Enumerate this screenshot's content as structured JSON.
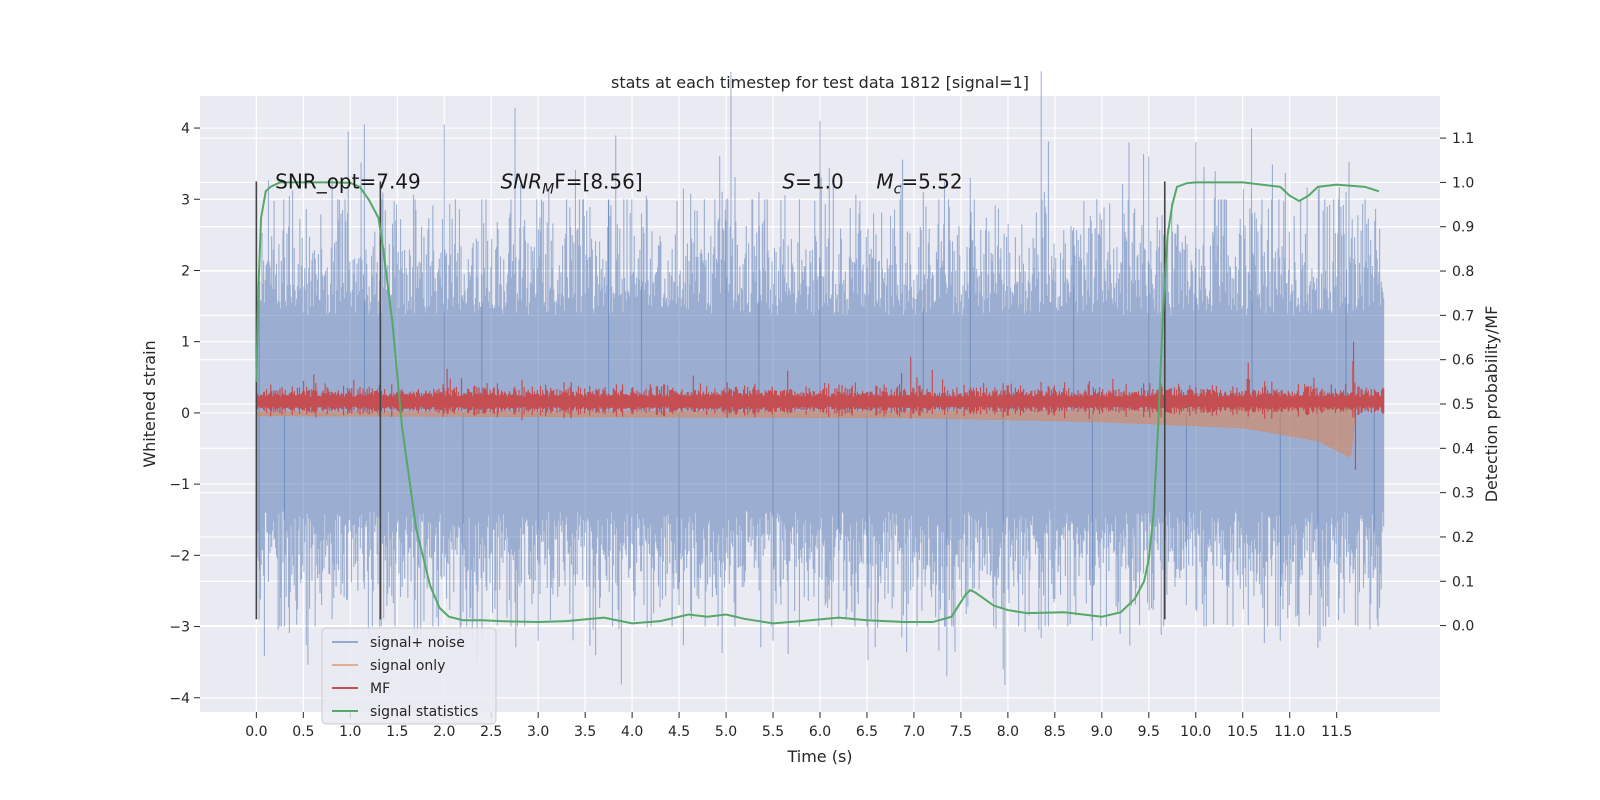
{
  "chart_data": {
    "type": "line",
    "title": "stats at each timestep for test data 1812 [signal=1]",
    "xlabel": "Time (s)",
    "ylabel": "Whitened strain",
    "ylabel_right": "Detection probability/MF",
    "xlim": [
      -0.6,
      12.6
    ],
    "ylim": [
      -4.2,
      4.45
    ],
    "ylim_right": [
      -0.195,
      1.195
    ],
    "x_ticks": [
      0.0,
      0.5,
      1.0,
      1.5,
      2.0,
      2.5,
      3.0,
      3.5,
      4.0,
      4.5,
      5.0,
      5.5,
      6.0,
      6.5,
      7.0,
      7.5,
      8.0,
      8.5,
      9.0,
      9.5,
      10.0,
      10.5,
      11.0,
      11.5
    ],
    "x_tick_labels": [
      "0.0",
      "0.5",
      "1.0",
      "1.5",
      "2.0",
      "2.5",
      "3.0",
      "3.5",
      "4.0",
      "4.5",
      "5.0",
      "5.5",
      "6.0",
      "6.5",
      "7.0",
      "7.5",
      "8.0",
      "8.5",
      "9.0",
      "9.5",
      "10.0",
      "10.5",
      "11.0",
      "11.5"
    ],
    "y_ticks": [
      -4,
      -3,
      -2,
      -1,
      0,
      1,
      2,
      3,
      4
    ],
    "y_tick_labels": [
      "−4",
      "−3",
      "−2",
      "−1",
      "0",
      "1",
      "2",
      "3",
      "4"
    ],
    "y_right_ticks": [
      0.0,
      0.1,
      0.2,
      0.3,
      0.4,
      0.5,
      0.6,
      0.7,
      0.8,
      0.9,
      1.0,
      1.1
    ],
    "y_right_tick_labels": [
      "0.0",
      "0.1",
      "0.2",
      "0.3",
      "0.4",
      "0.5",
      "0.6",
      "0.7",
      "0.8",
      "0.9",
      "1.0",
      "1.1"
    ],
    "grid": true,
    "legend_position": "lower-left",
    "series": [
      {
        "name": "signal+ noise",
        "color": "#4c72b0",
        "axis": "left",
        "style": "dense-noise",
        "x_range": [
          0.0,
          12.0
        ],
        "approx_envelope": [
          -2.5,
          2.5
        ],
        "approx_peaks": [
          [
            0.03,
            1.85
          ],
          [
            0.03,
            -2.9
          ],
          [
            0.3,
            -3.0
          ],
          [
            1.15,
            4.05
          ],
          [
            2.0,
            4.05
          ],
          [
            2.4,
            3.0
          ],
          [
            2.2,
            -2.8
          ],
          [
            3.0,
            -3.2
          ],
          [
            3.75,
            3.0
          ],
          [
            4.1,
            2.8
          ],
          [
            4.5,
            -2.7
          ],
          [
            5.0,
            2.7
          ],
          [
            5.35,
            3.1
          ],
          [
            5.5,
            -3.2
          ],
          [
            6.0,
            4.1
          ],
          [
            6.2,
            -2.9
          ],
          [
            6.5,
            -3.0
          ],
          [
            7.1,
            3.1
          ],
          [
            7.35,
            -3.7
          ],
          [
            7.6,
            3.3
          ],
          [
            7.95,
            -3.6
          ],
          [
            8.7,
            2.6
          ],
          [
            8.9,
            -3.2
          ],
          [
            9.5,
            3.6
          ],
          [
            9.9,
            -2.7
          ],
          [
            10.0,
            3.8
          ],
          [
            10.6,
            2.8
          ],
          [
            10.9,
            -3.2
          ],
          [
            11.3,
            -3.3
          ],
          [
            11.6,
            3.1
          ],
          [
            11.9,
            -2.2
          ]
        ]
      },
      {
        "name": "signal only",
        "color": "#dd8452",
        "axis": "left",
        "style": "chirp",
        "x_range": [
          0.0,
          11.7
        ],
        "approx_envelope": [
          [
            0.0,
            0.03
          ],
          [
            7.0,
            0.05
          ],
          [
            9.0,
            0.09
          ],
          [
            10.5,
            0.15
          ],
          [
            11.3,
            0.28
          ],
          [
            11.65,
            0.45
          ],
          [
            11.7,
            0.0
          ]
        ]
      },
      {
        "name": "MF",
        "color": "#c44e52",
        "axis": "left",
        "style": "noisy-band",
        "x_range": [
          0.0,
          12.0
        ],
        "approx_center": 0.15,
        "approx_halfwidth": 0.13,
        "approx_spike": [
          [
            11.68,
            1.0
          ],
          [
            11.7,
            -0.8
          ]
        ]
      },
      {
        "name": "signal statistics",
        "color": "#55a868",
        "axis": "right",
        "style": "line",
        "x": [
          0.0,
          0.02,
          0.05,
          0.1,
          0.15,
          0.25,
          0.5,
          0.8,
          1.0,
          1.1,
          1.2,
          1.3,
          1.35,
          1.45,
          1.55,
          1.7,
          1.85,
          1.95,
          2.05,
          2.2,
          2.4,
          2.6,
          3.0,
          3.3,
          3.7,
          4.0,
          4.3,
          4.6,
          4.8,
          5.0,
          5.2,
          5.5,
          5.8,
          6.2,
          6.5,
          6.9,
          7.2,
          7.4,
          7.55,
          7.6,
          7.65,
          7.75,
          7.85,
          8.0,
          8.2,
          8.6,
          8.8,
          9.0,
          9.2,
          9.35,
          9.45,
          9.5,
          9.55,
          9.6,
          9.65,
          9.7,
          9.75,
          9.8,
          9.9,
          10.0,
          10.5,
          10.9,
          11.0,
          11.1,
          11.2,
          11.3,
          11.5,
          11.8,
          11.95
        ],
        "y": [
          0.55,
          0.75,
          0.92,
          0.98,
          0.99,
          1.0,
          1.0,
          1.0,
          0.999,
          0.99,
          0.96,
          0.92,
          0.85,
          0.68,
          0.45,
          0.22,
          0.09,
          0.04,
          0.02,
          0.012,
          0.012,
          0.01,
          0.008,
          0.01,
          0.018,
          0.005,
          0.01,
          0.025,
          0.02,
          0.025,
          0.015,
          0.005,
          0.01,
          0.018,
          0.012,
          0.008,
          0.008,
          0.02,
          0.07,
          0.08,
          0.075,
          0.06,
          0.045,
          0.035,
          0.028,
          0.03,
          0.025,
          0.02,
          0.03,
          0.06,
          0.1,
          0.15,
          0.25,
          0.45,
          0.7,
          0.88,
          0.95,
          0.99,
          0.998,
          1.0,
          1.0,
          0.99,
          0.97,
          0.958,
          0.97,
          0.99,
          0.995,
          0.99,
          0.98
        ]
      }
    ],
    "vertical_markers": [
      {
        "x": 0.0,
        "y_top": 3.25,
        "y_bottom": -2.9
      },
      {
        "x": 1.32,
        "y_top": 3.25,
        "y_bottom": -2.9
      },
      {
        "x": 9.67,
        "y_top": 3.25,
        "y_bottom": -2.9
      }
    ],
    "annotations": [
      {
        "x": 0.2,
        "y": 3.25,
        "text": "SNR_opt=7.49",
        "italic": false
      },
      {
        "x": 2.6,
        "y": 3.25,
        "text": "SNR",
        "sub": "M",
        "tail": "F=[8.56]",
        "italic": true
      },
      {
        "x": 5.6,
        "y": 3.25,
        "text": "S",
        "tail": "=1.0",
        "italic": true
      },
      {
        "x": 6.6,
        "y": 3.25,
        "text": "M",
        "sub": "c",
        "tail": "=5.52",
        "italic": true
      }
    ]
  }
}
